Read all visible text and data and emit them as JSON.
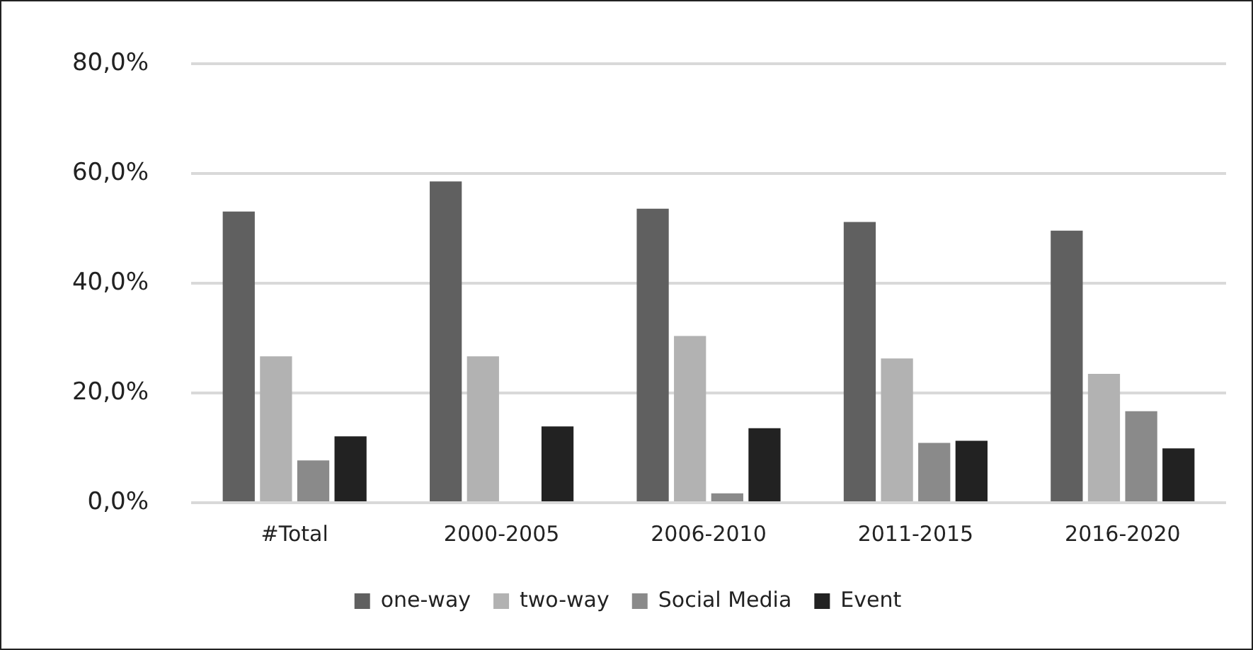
{
  "chart_data": {
    "type": "bar",
    "categories": [
      "#Total",
      "2000-2005",
      "2006-2010",
      "2011-2015",
      "2016-2020"
    ],
    "series": [
      {
        "name": "one-way",
        "color": "#606060",
        "values": [
          53.1,
          58.6,
          53.6,
          51.2,
          49.6
        ]
      },
      {
        "name": "two-way",
        "color": "#b2b2b2",
        "values": [
          26.7,
          26.7,
          30.4,
          26.3,
          23.5
        ]
      },
      {
        "name": "Social Media",
        "color": "#8a8a8a",
        "values": [
          7.7,
          null,
          1.7,
          10.9,
          16.7
        ]
      },
      {
        "name": "Event",
        "color": "#222222",
        "values": [
          12.1,
          13.9,
          13.6,
          11.3,
          9.9
        ]
      }
    ],
    "ylim": [
      0,
      80
    ],
    "yticks": [
      {
        "value": 0,
        "label": "0,0%"
      },
      {
        "value": 20,
        "label": "20,0%"
      },
      {
        "value": 40,
        "label": "40,0%"
      },
      {
        "value": 60,
        "label": "60,0%"
      },
      {
        "value": 80,
        "label": "80,0%"
      }
    ],
    "grid": "y",
    "legend": "bottom"
  }
}
